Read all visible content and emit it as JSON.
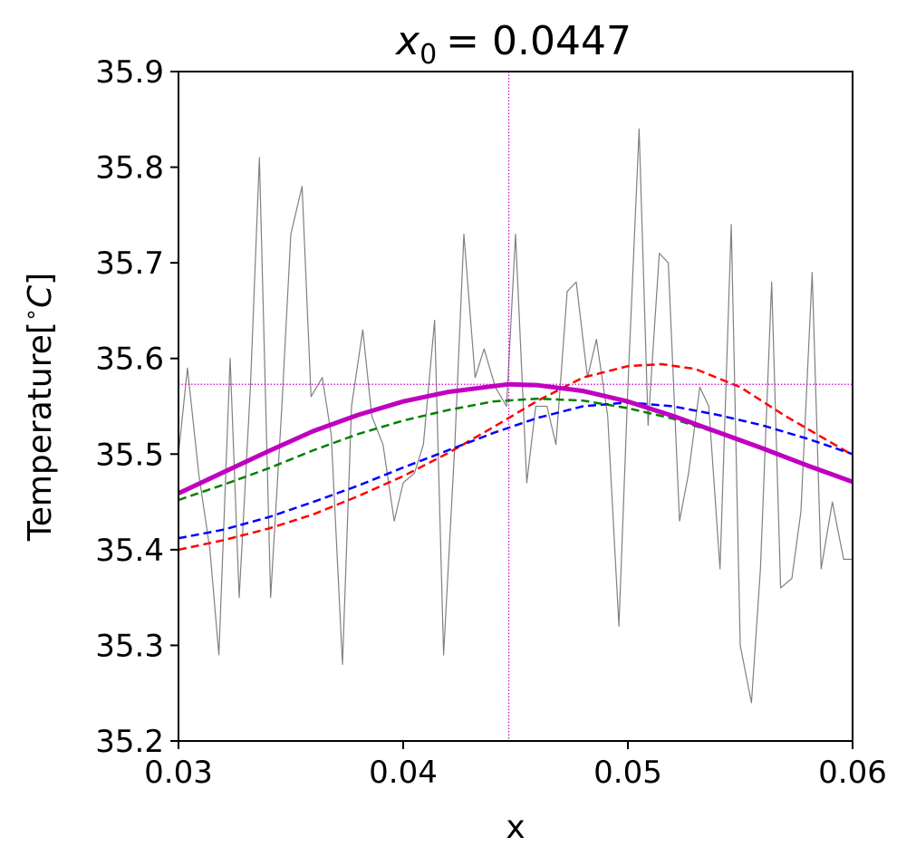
{
  "chart_data": {
    "type": "line",
    "title_var": "x",
    "title_sub": "0",
    "title_value": "= 0.0447",
    "xlabel": "x",
    "ylabel_text": "Temperature[",
    "ylabel_deg": "∘",
    "ylabel_unit": "C",
    "ylabel_close": "]",
    "xlim": [
      0.03,
      0.06
    ],
    "ylim": [
      35.2,
      35.9
    ],
    "xticks": [
      0.03,
      0.04,
      0.05,
      0.06
    ],
    "xtick_labels": [
      "0.03",
      "0.04",
      "0.05",
      "0.06"
    ],
    "yticks": [
      35.2,
      35.3,
      35.4,
      35.5,
      35.6,
      35.7,
      35.8,
      35.9
    ],
    "ytick_labels": [
      "35.2",
      "35.3",
      "35.4",
      "35.5",
      "35.6",
      "35.7",
      "35.8",
      "35.9"
    ],
    "grid": false,
    "reference_lines": {
      "x0": 0.0447,
      "y_peak": 35.573,
      "color": "#cc00cc"
    },
    "series": [
      {
        "role": "noisy-data",
        "color": "#808080",
        "style": "solid",
        "x": [
          0.03,
          0.0304,
          0.0309,
          0.0314,
          0.0318,
          0.0323,
          0.0327,
          0.0332,
          0.0336,
          0.0341,
          0.0346,
          0.035,
          0.0355,
          0.0359,
          0.0364,
          0.0368,
          0.0373,
          0.0377,
          0.0382,
          0.0386,
          0.0391,
          0.0396,
          0.04,
          0.0405,
          0.0409,
          0.0414,
          0.0418,
          0.0423,
          0.0427,
          0.0432,
          0.0436,
          0.0441,
          0.0446,
          0.045,
          0.0455,
          0.0459,
          0.0464,
          0.0468,
          0.0473,
          0.0477,
          0.0482,
          0.0486,
          0.0491,
          0.0496,
          0.05,
          0.0505,
          0.0509,
          0.0514,
          0.0518,
          0.0523,
          0.0527,
          0.0532,
          0.0536,
          0.0541,
          0.0546,
          0.055,
          0.0555,
          0.0559,
          0.0564,
          0.0568,
          0.0573,
          0.0577,
          0.0582,
          0.0586,
          0.0591,
          0.0596,
          0.06
        ],
        "y": [
          35.5,
          35.59,
          35.48,
          35.4,
          35.29,
          35.6,
          35.35,
          35.57,
          35.81,
          35.35,
          35.55,
          35.73,
          35.78,
          35.56,
          35.58,
          35.52,
          35.28,
          35.55,
          35.63,
          35.54,
          35.51,
          35.43,
          35.47,
          35.48,
          35.51,
          35.64,
          35.29,
          35.51,
          35.73,
          35.58,
          35.61,
          35.57,
          35.55,
          35.73,
          35.47,
          35.55,
          35.55,
          35.51,
          35.67,
          35.68,
          35.58,
          35.62,
          35.54,
          35.32,
          35.57,
          35.84,
          35.53,
          35.71,
          35.7,
          35.43,
          35.48,
          35.57,
          35.55,
          35.38,
          35.74,
          35.3,
          35.24,
          35.38,
          35.68,
          35.36,
          35.37,
          35.44,
          35.69,
          35.38,
          35.45,
          35.39,
          35.39
        ]
      },
      {
        "role": "fit-red",
        "color": "#ff0000",
        "style": "dashed",
        "x": [
          0.03,
          0.032,
          0.034,
          0.036,
          0.038,
          0.04,
          0.042,
          0.044,
          0.046,
          0.048,
          0.05,
          0.0515,
          0.053,
          0.055,
          0.057,
          0.06
        ],
        "y": [
          35.4,
          35.41,
          35.422,
          35.437,
          35.456,
          35.477,
          35.501,
          35.528,
          35.556,
          35.58,
          35.592,
          35.594,
          35.589,
          35.57,
          35.54,
          35.499
        ]
      },
      {
        "role": "fit-blue",
        "color": "#0000ff",
        "style": "dashed",
        "x": [
          0.03,
          0.032,
          0.034,
          0.036,
          0.038,
          0.04,
          0.042,
          0.044,
          0.046,
          0.048,
          0.05,
          0.052,
          0.054,
          0.056,
          0.058,
          0.06
        ],
        "y": [
          35.412,
          35.421,
          35.434,
          35.45,
          35.467,
          35.486,
          35.504,
          35.522,
          35.538,
          35.55,
          35.554,
          35.55,
          35.541,
          35.53,
          35.516,
          35.5
        ]
      },
      {
        "role": "fit-green",
        "color": "#008000",
        "style": "dashed",
        "x": [
          0.03,
          0.032,
          0.034,
          0.036,
          0.038,
          0.04,
          0.042,
          0.044,
          0.046,
          0.048,
          0.05,
          0.052,
          0.054,
          0.056,
          0.058,
          0.06
        ],
        "y": [
          35.452,
          35.468,
          35.485,
          35.504,
          35.521,
          35.535,
          35.546,
          35.555,
          35.558,
          35.556,
          35.548,
          35.537,
          35.522,
          35.506,
          35.489,
          35.472
        ]
      },
      {
        "role": "best-fit",
        "color": "#c000c0",
        "style": "solid-thick",
        "x": [
          0.03,
          0.032,
          0.034,
          0.036,
          0.038,
          0.04,
          0.042,
          0.044,
          0.0447,
          0.046,
          0.048,
          0.05,
          0.052,
          0.054,
          0.056,
          0.058,
          0.06
        ],
        "y": [
          35.459,
          35.481,
          35.503,
          35.524,
          35.541,
          35.555,
          35.565,
          35.571,
          35.573,
          35.572,
          35.566,
          35.555,
          35.54,
          35.523,
          35.506,
          35.488,
          35.471
        ]
      }
    ]
  }
}
